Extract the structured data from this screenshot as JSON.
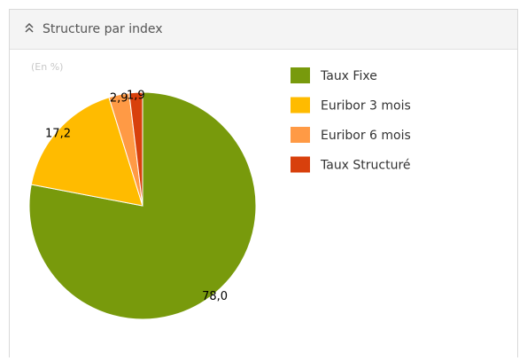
{
  "chart_data": {
    "type": "pie",
    "title": "Structure par index",
    "subtitle": "(En %)",
    "categories": [
      "Taux Fixe",
      "Euribor 3 mois",
      "Euribor 6 mois",
      "Taux Structuré"
    ],
    "values": [
      78.0,
      17.2,
      2.9,
      1.9
    ],
    "value_labels": [
      "78,0",
      "17,2",
      "2,9",
      "1,9"
    ],
    "colors": [
      "#789a0c",
      "#ffbb00",
      "#ff9a45",
      "#d8400c"
    ],
    "legend": "right"
  }
}
